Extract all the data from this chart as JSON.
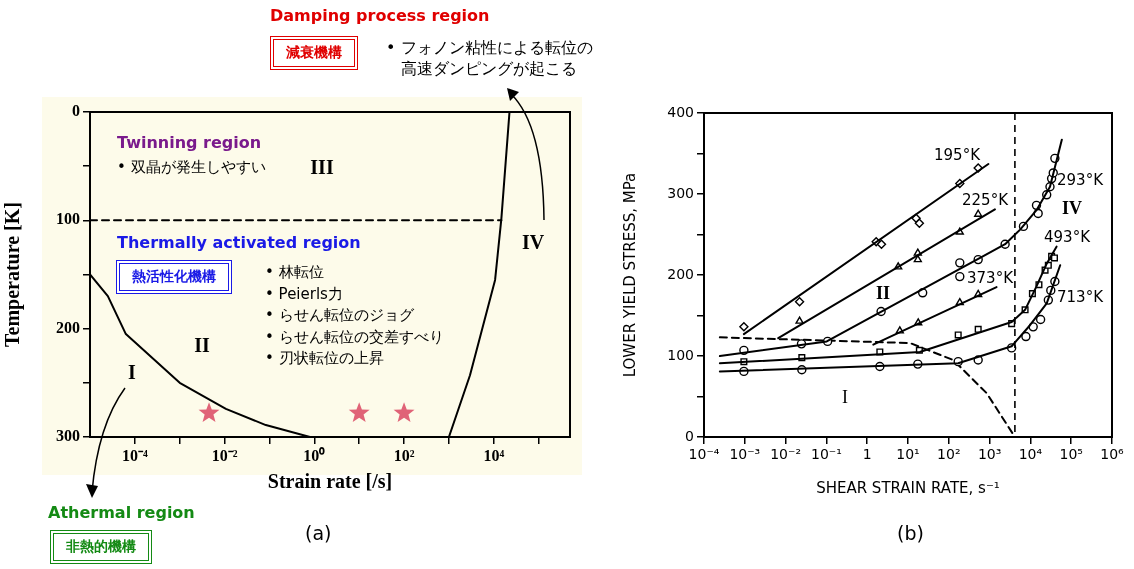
{
  "chart_data": [
    {
      "type": "line",
      "xlabel": "Strain rate [/s]",
      "ylabel": "Temperature [K]",
      "log": "x",
      "xlim": [
        1e-05,
        500000
      ],
      "ylim": [
        300,
        0
      ],
      "xticks": [
        {
          "value": 0.0001,
          "label": "10⁻⁴"
        },
        {
          "value": 0.001,
          "label": null
        },
        {
          "value": 0.01,
          "label": "10⁻²"
        },
        {
          "value": 0.1,
          "label": null
        },
        {
          "value": 1,
          "label": "10⁰"
        },
        {
          "value": 10,
          "label": null
        },
        {
          "value": 100,
          "label": "10²"
        },
        {
          "value": 1000,
          "label": null
        },
        {
          "value": 10000,
          "label": "10⁴"
        },
        {
          "value": 100000,
          "label": null
        }
      ],
      "yticks": [
        0,
        {
          "value": 50,
          "label": null
        },
        100,
        {
          "value": 150,
          "label": null
        },
        200,
        {
          "value": 250,
          "label": null
        },
        300
      ],
      "series": [
        {
          "color": "#000000",
          "x": [
            1e-05,
            2.5e-05,
            6.3e-05,
            0.001,
            0.0107,
            0.083,
            0.8
          ],
          "values": [
            150,
            170,
            205,
            250,
            274,
            289,
            300
          ]
        },
        {
          "color": "#000000",
          "x": [
            1000,
            2950,
            10700,
            14800,
            22400
          ],
          "values": [
            300,
            243,
            155,
            98,
            0
          ]
        },
        {
          "color": "#000000",
          "line_style": "dashed",
          "x": [
            1e-05,
            14800
          ],
          "values": [
            100,
            100
          ]
        },
        {
          "type": "scatter",
          "color": "#e06377",
          "marker": "star",
          "x": [
            0.0045,
            10,
            100
          ],
          "values": [
            278,
            278,
            278
          ]
        }
      ],
      "annotations": [
        "Damping process region",
        "減衰機構",
        "• フォノン粘性による転位の高速ダンピングが起こる",
        "Twinning region",
        "• 双晶が発生しやすい",
        "Thermally activated region",
        "熱活性化機構",
        "• 林転位\n• Peierls力\n• らせん転位のジョグ\n• らせん転位の交差すべり\n• 刃状転位の上昇",
        "Athermal region",
        "非熱的機構",
        "(a)",
        "I",
        "II",
        "III",
        "IV"
      ]
    },
    {
      "type": "line",
      "xlabel": "SHEAR STRAIN RATE, s⁻¹",
      "ylabel": "LOWER YIELD STRESS, MPa",
      "log": "x",
      "xlim": [
        0.0001,
        1000000
      ],
      "ylim": [
        0,
        400
      ],
      "xticks": [
        {
          "value": 0.0001,
          "label": "10⁻⁴"
        },
        {
          "value": 0.001,
          "label": "10⁻³"
        },
        {
          "value": 0.01,
          "label": "10⁻²"
        },
        {
          "value": 0.1,
          "label": "10⁻¹"
        },
        1,
        {
          "value": 10,
          "label": "10¹"
        },
        {
          "value": 100,
          "label": "10²"
        },
        {
          "value": 1000,
          "label": "10³"
        },
        {
          "value": 10000,
          "label": "10⁴"
        },
        {
          "value": 100000,
          "label": "10⁵"
        },
        {
          "value": 1000000,
          "label": "10⁶"
        }
      ],
      "yticks": [
        0,
        {
          "value": 50,
          "label": null
        },
        100,
        {
          "value": 150,
          "label": null
        },
        200,
        {
          "value": 250,
          "label": null
        },
        300,
        {
          "value": 350,
          "label": null
        },
        400
      ],
      "series": [
        {
          "type": "line",
          "color": "#000000",
          "x": [
            0.00095,
            933
          ],
          "values": [
            127,
            337
          ]
        },
        {
          "type": "scatter",
          "color": "#000000",
          "marker": "diamond",
          "x": [
            0.00095,
            0.022,
            1.66,
            2.24,
            15.8,
            19,
            186,
            525
          ],
          "values": [
            136,
            167,
            241,
            238,
            270,
            264,
            313,
            332
          ]
        },
        {
          "type": "line",
          "color": "#000000",
          "x": [
            0.0066,
            1350
          ],
          "values": [
            122,
            281
          ]
        },
        {
          "type": "scatter",
          "color": "#000000",
          "marker": "triangle",
          "x": [
            0.022,
            5.75,
            17.4,
            17.4,
            186,
            525
          ],
          "values": [
            143,
            210,
            227,
            219,
            253,
            275
          ]
        },
        {
          "type": "line",
          "color": "#000000",
          "x": [
            0.000245,
            0.102,
            2400,
            5600,
            14100,
            30200,
            58900
          ],
          "values": [
            100,
            118,
            238,
            256,
            280,
            309,
            367
          ]
        },
        {
          "type": "scatter",
          "color": "#000000",
          "marker": "circle",
          "x": [
            0.00095,
            0.0245,
            0.107,
            2.19,
            22.9,
            186,
            186,
            525,
            2400,
            6760,
            15500,
            14100,
            25100,
            30200,
            33100,
            36300,
            39800
          ],
          "values": [
            107,
            115,
            118,
            155,
            178,
            215,
            198,
            219,
            238,
            260,
            276,
            286,
            299,
            309,
            319,
            326,
            344
          ]
        },
        {
          "type": "line",
          "color": "#000000",
          "x": [
            1.41,
            1480
          ],
          "values": [
            114,
            185
          ]
        },
        {
          "type": "scatter",
          "color": "#000000",
          "marker": "triangle",
          "x": [
            6.3,
            17.8,
            186,
            525
          ],
          "values": [
            131,
            141,
            166,
            176
          ]
        },
        {
          "type": "line",
          "color": "#000000",
          "x": [
            0.000245,
            19.5,
            3470,
            7410,
            14100,
            25100,
            43700
          ],
          "values": [
            91,
            105,
            142,
            157,
            186,
            214,
            235
          ]
        },
        {
          "type": "scatter",
          "color": "#000000",
          "marker": "square",
          "x": [
            0.00095,
            0.025,
            2.04,
            19,
            170,
            525,
            3470,
            7410,
            11200,
            16200,
            22900,
            27500,
            33100,
            38900
          ],
          "values": [
            93,
            98,
            105,
            107,
            126,
            133,
            140,
            157,
            177,
            188,
            206,
            212,
            223,
            221
          ]
        },
        {
          "type": "line",
          "color": "#000000",
          "x": [
            0.000245,
            170,
            3470,
            9770,
            25100,
            53700
          ],
          "values": [
            81,
            91,
            112,
            138,
            165,
            212
          ]
        },
        {
          "type": "scatter",
          "color": "#000000",
          "marker": "circle",
          "x": [
            0.00095,
            0.025,
            2.04,
            17.4,
            170,
            525,
            3470,
            7760,
            11700,
            17800,
            27500,
            31600,
            39800
          ],
          "values": [
            81,
            83,
            87,
            90,
            93,
            95,
            110,
            124,
            136,
            145,
            169,
            181,
            192
          ]
        },
        {
          "type": "line",
          "color": "#000000",
          "line_style": "dashed",
          "x": [
            0.000245,
            11.2,
            129,
            851,
            4170
          ],
          "values": [
            123,
            116,
            95,
            54,
            0
          ]
        }
      ],
      "ref_lines": [
        {
          "axis": "x",
          "value": 4170,
          "line_style": "dashed"
        }
      ],
      "annotations": [
        "(b)",
        "II",
        "I",
        "IV",
        "195°K",
        "225°K",
        "293°K",
        "373°K",
        "493°K",
        "713°K"
      ]
    }
  ]
}
